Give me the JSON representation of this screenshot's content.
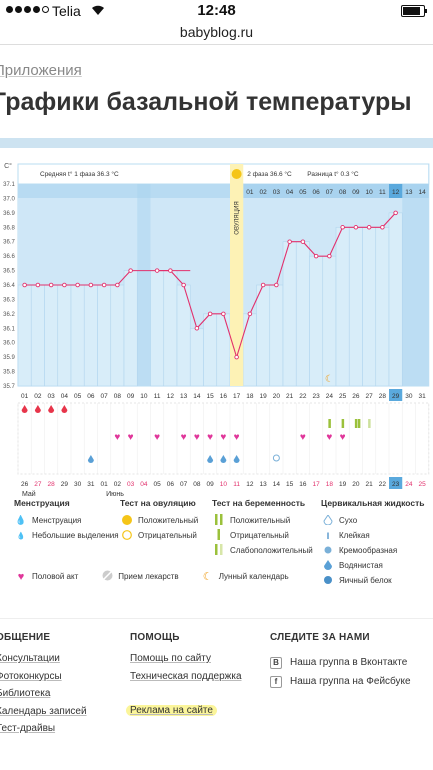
{
  "status_bar": {
    "carrier": "Telia",
    "time": "12:48"
  },
  "browser": {
    "url": "babyblog.ru"
  },
  "breadcrumb": "Приложения",
  "page_title": "Графики базальной температуры",
  "chart_data": {
    "type": "line",
    "y_unit": "С°",
    "ylim": [
      35.7,
      37.1
    ],
    "y_ticks": [
      "37.1",
      "37.0",
      "36.9",
      "36.8",
      "36.7",
      "36.6",
      "36.5",
      "36.4",
      "36.3",
      "36.2",
      "36.1",
      "36.0",
      "35.9",
      "35.8",
      "35.7"
    ],
    "phase1_label": "Средняя t° 1 фаза 36.3 °C",
    "phase2_label": "2 фаза 36.6 °C",
    "diff_label": "Разница t° 0.3 °C",
    "ovulation_label": "ОВУЛЯЦИЯ",
    "ovulation_day_index": 16,
    "cycle_days": [
      "01",
      "02",
      "03",
      "04",
      "05",
      "06",
      "07",
      "08",
      "09",
      "10",
      "11",
      "12",
      "13",
      "14",
      "15",
      "16",
      "17",
      "18",
      "19",
      "20",
      "21",
      "22",
      "23",
      "24",
      "25",
      "26",
      "27",
      "28",
      "29",
      "30",
      "31"
    ],
    "post_ovulation_days": [
      "01",
      "02",
      "03",
      "04",
      "05",
      "06",
      "07",
      "08",
      "09",
      "10",
      "11",
      "12",
      "13",
      "14"
    ],
    "dates": [
      "26",
      "27",
      "28",
      "29",
      "30",
      "31",
      "01",
      "02",
      "03",
      "04",
      "05",
      "06",
      "07",
      "08",
      "09",
      "10",
      "11",
      "12",
      "13",
      "14",
      "15",
      "16",
      "17",
      "18",
      "19",
      "20",
      "21",
      "22",
      "23",
      "24",
      "25"
    ],
    "months": [
      "Май",
      "Июнь"
    ],
    "temperatures": [
      36.4,
      36.4,
      36.4,
      36.4,
      36.4,
      36.4,
      36.4,
      36.4,
      36.5,
      null,
      36.5,
      36.5,
      36.4,
      36.1,
      36.2,
      36.2,
      35.9,
      36.2,
      36.4,
      36.4,
      36.7,
      36.7,
      36.6,
      36.6,
      36.8,
      36.8,
      36.8,
      36.8,
      36.9,
      null,
      null
    ],
    "coverline": 36.5,
    "highlight_day": "29",
    "highlight_date": "23",
    "menstruation_days": [
      1,
      2,
      3,
      4
    ],
    "intercourse_days": [
      8,
      9,
      11,
      13,
      14,
      15,
      16,
      17,
      22,
      24,
      25
    ],
    "cervical_watery_days": [
      6,
      15,
      16,
      17
    ],
    "cervical_dry_days": [
      20
    ],
    "ovulation_test_days": [
      24,
      25,
      26,
      27
    ],
    "lunar_day": 24
  },
  "legend": {
    "menstruation": {
      "title": "Менструация",
      "items": [
        "Менструация",
        "Небольшие выделения"
      ]
    },
    "ovulation_test": {
      "title": "Тест на овуляцию",
      "items": [
        "Положительный",
        "Отрицательный"
      ]
    },
    "pregnancy_test": {
      "title": "Тест на беременность",
      "items": [
        "Положительный",
        "Отрицательный",
        "Слабоположительный"
      ]
    },
    "cervical": {
      "title": "Цервикальная жидкость",
      "items": [
        "Сухо",
        "Клейкая",
        "Кремообразная",
        "Водянистая",
        "Яичный белок"
      ]
    },
    "bottom": [
      "Половой акт",
      "Прием лекарств",
      "Лунный календарь"
    ]
  },
  "footer": {
    "col1": {
      "title": "ОБЩЕНИЕ",
      "links": [
        "Консультации",
        "Фотоконкурсы",
        "Библиотека",
        "Календарь записей",
        "Тест-драйвы"
      ]
    },
    "col2": {
      "title": "ПОМОЩЬ",
      "links": [
        "Помощь по сайту",
        "Техническая поддержка",
        "Реклама на сайте"
      ]
    },
    "col3": {
      "title": "СЛЕДИТЕ ЗА НАМИ",
      "links": [
        "Наша группа в Вконтакте",
        "Наша группа на Фейсбуке"
      ]
    }
  },
  "colors": {
    "accent_blue": "#cfe6f6",
    "plot_blue": "#a9d3ef",
    "line_pink": "#e2306c",
    "ovulation_yellow": "#fdf2b5",
    "marker_red": "#e7354a"
  }
}
